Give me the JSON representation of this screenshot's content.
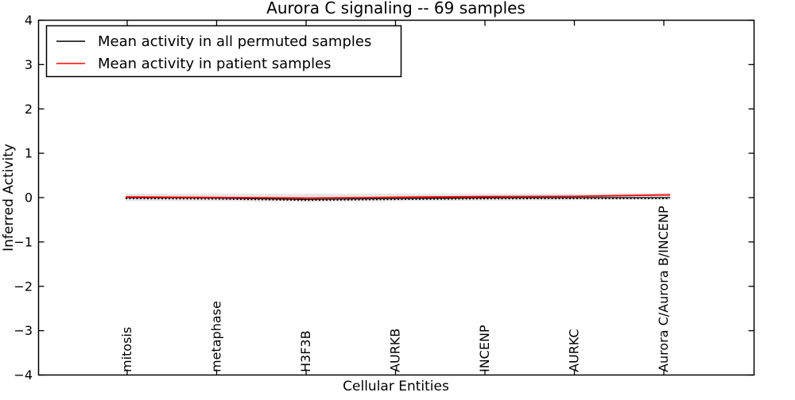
{
  "figure": {
    "background": "#ffffff",
    "frame_color": "#000000"
  },
  "chart_data": {
    "type": "line",
    "title": "Aurora C signaling -- 69 samples",
    "xlabel": "Cellular Entities",
    "ylabel": "Inferred Activity",
    "ylim": [
      -4,
      4
    ],
    "yticks": [
      4,
      3,
      2,
      1,
      0,
      -1,
      -2,
      -3,
      -4
    ],
    "grid": false,
    "legend": {
      "position": "upper left",
      "background": "#ffffff",
      "border_color": "#000000"
    },
    "categories": [
      "mitosis",
      "metaphase",
      "H3F3B",
      "AURKB",
      "INCENP",
      "AURKC",
      "Aurora C/Aurora B/INCENP"
    ],
    "series": [
      {
        "name": "Mean activity in all permuted samples",
        "color": "#000000",
        "line_style": "solid with small point markers",
        "values": [
          0.0,
          -0.01,
          -0.04,
          -0.02,
          -0.005,
          0.0,
          0.0
        ]
      },
      {
        "name": "Mean activity in patient samples",
        "color": "#ff0000",
        "line_style": "solid",
        "values": [
          0.015,
          0.005,
          -0.01,
          0.01,
          0.025,
          0.03,
          0.06
        ]
      }
    ],
    "band": {
      "description": "spread of permuted sample activity",
      "color": "#e7e7e7",
      "upper": [
        0.09,
        0.09,
        0.09,
        0.09,
        0.09,
        0.09,
        0.11
      ],
      "lower": [
        -0.08,
        -0.08,
        -0.1,
        -0.08,
        -0.07,
        -0.06,
        -0.05
      ]
    }
  }
}
